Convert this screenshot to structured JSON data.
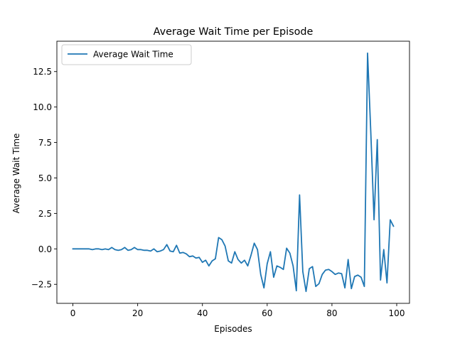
{
  "chart_data": {
    "type": "line",
    "title": "Average Wait Time per Episode",
    "xlabel": "Episodes",
    "ylabel": "Average Wait Time",
    "xlim": [
      -4.95,
      103.95
    ],
    "ylim": [
      -3.84,
      14.64
    ],
    "xticks": [
      0,
      20,
      40,
      60,
      80,
      100
    ],
    "yticks": [
      -2.5,
      0.0,
      2.5,
      5.0,
      7.5,
      10.0,
      12.5
    ],
    "ytick_labels": [
      "−2.5",
      "0.0",
      "2.5",
      "5.0",
      "7.5",
      "10.0",
      "12.5"
    ],
    "grid": false,
    "legend_position": "upper-left",
    "series": [
      {
        "name": "Average Wait Time",
        "color": "#1f77b4",
        "x": [
          0,
          1,
          2,
          3,
          4,
          5,
          6,
          7,
          8,
          9,
          10,
          11,
          12,
          13,
          14,
          15,
          16,
          17,
          18,
          19,
          20,
          21,
          22,
          23,
          24,
          25,
          26,
          27,
          28,
          29,
          30,
          31,
          32,
          33,
          34,
          35,
          36,
          37,
          38,
          39,
          40,
          41,
          42,
          43,
          44,
          45,
          46,
          47,
          48,
          49,
          50,
          51,
          52,
          53,
          54,
          55,
          56,
          57,
          58,
          59,
          60,
          61,
          62,
          63,
          64,
          65,
          66,
          67,
          68,
          69,
          70,
          71,
          72,
          73,
          74,
          75,
          76,
          77,
          78,
          79,
          80,
          81,
          82,
          83,
          84,
          85,
          86,
          87,
          88,
          89,
          90,
          91,
          92,
          93,
          94,
          95,
          96,
          97,
          98,
          99
        ],
        "values": [
          0.0,
          0.0,
          0.0,
          0.0,
          0.0,
          0.0,
          -0.05,
          0.0,
          0.0,
          -0.05,
          0.0,
          -0.05,
          0.1,
          -0.05,
          -0.1,
          -0.05,
          0.1,
          -0.1,
          -0.05,
          0.1,
          -0.05,
          -0.05,
          -0.1,
          -0.1,
          -0.15,
          0.0,
          -0.2,
          -0.15,
          -0.05,
          0.3,
          -0.15,
          -0.2,
          0.25,
          -0.3,
          -0.25,
          -0.35,
          -0.55,
          -0.5,
          -0.65,
          -0.6,
          -0.95,
          -0.8,
          -1.2,
          -0.85,
          -0.7,
          0.8,
          0.65,
          0.2,
          -0.85,
          -1.0,
          -0.2,
          -0.75,
          -1.0,
          -0.8,
          -1.2,
          -0.45,
          0.4,
          -0.05,
          -1.8,
          -2.75,
          -1.05,
          -0.2,
          -2.0,
          -1.2,
          -1.3,
          -1.45,
          0.05,
          -0.3,
          -1.2,
          -2.95,
          3.8,
          -1.6,
          -3.0,
          -1.4,
          -1.25,
          -2.65,
          -2.45,
          -1.8,
          -1.5,
          -1.45,
          -1.6,
          -1.8,
          -1.7,
          -1.75,
          -2.75,
          -0.75,
          -2.8,
          -1.95,
          -1.85,
          -2.0,
          -2.65,
          13.8,
          8.2,
          2.05,
          7.7,
          -2.2,
          -0.05,
          -2.4,
          2.05,
          1.6
        ]
      }
    ]
  }
}
